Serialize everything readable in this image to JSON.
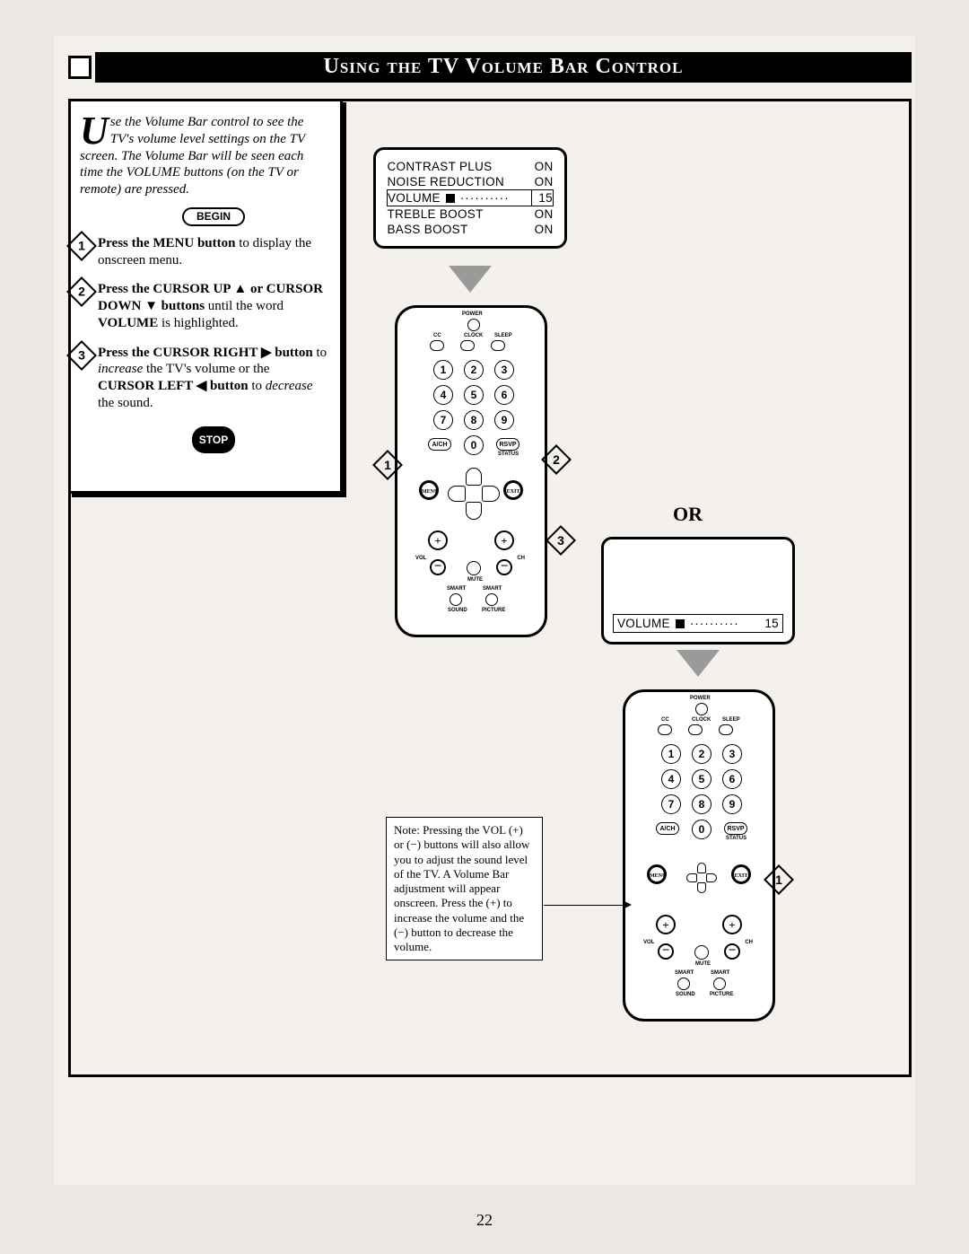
{
  "header": {
    "title": "Using the TV Volume Bar Control"
  },
  "intro": {
    "dropcap": "U",
    "text": "se the Volume Bar control to see the TV's volume level settings on the TV screen. The Volume Bar will be seen each time the VOLUME buttons (on the TV or remote) are pressed."
  },
  "begin": "BEGIN",
  "steps": [
    {
      "n": "1",
      "html": "<b>Press the MENU button</b> to display the onscreen menu."
    },
    {
      "n": "2",
      "html": "<b>Press the CURSOR UP ▲ or CURSOR DOWN ▼ buttons</b> until the word <b>VOLUME</b> is highlighted."
    },
    {
      "n": "3",
      "html": "<b>Press the CURSOR RIGHT ▶ button</b> to <i>increase</i> the TV's volume or the <b>CURSOR LEFT ◀ button</b> to <i>decrease</i> the sound."
    }
  ],
  "stop": "STOP",
  "tv1": {
    "rows": [
      [
        "CONTRAST PLUS",
        "ON"
      ],
      [
        "NOISE REDUCTION",
        "ON"
      ],
      [
        "VOLUME",
        "15"
      ],
      [
        "TREBLE BOOST",
        "ON"
      ],
      [
        "BASS BOOST",
        "ON"
      ]
    ],
    "highlight_index": 2
  },
  "tv2": {
    "label": "VOLUME",
    "value": "15"
  },
  "or": "OR",
  "remote": {
    "power": "POWER",
    "top_row": [
      "CC",
      "CLOCK",
      "SLEEP"
    ],
    "numbers": [
      "1",
      "2",
      "3",
      "4",
      "5",
      "6",
      "7",
      "8",
      "9",
      "0"
    ],
    "ach": "A/CH",
    "rsvp": "RSVP",
    "menu": "MENU",
    "exit": "EXIT",
    "status": "STATUS",
    "vol": "VOL",
    "ch": "CH",
    "mute": "MUTE",
    "smart_sound": "SMART",
    "smart_picture": "SMART",
    "sound": "SOUND",
    "picture": "PICTURE"
  },
  "callouts_top": {
    "one": "1",
    "two": "2",
    "three": "3"
  },
  "callout_bottom": {
    "one": "1"
  },
  "note": "Note: Pressing the VOL (+) or (−) buttons will also allow you to adjust the sound level of the TV. A Volume Bar adjustment will appear onscreen. Press the (+) to increase the volume and the (−) button to decrease the volume.",
  "page_number": "22"
}
